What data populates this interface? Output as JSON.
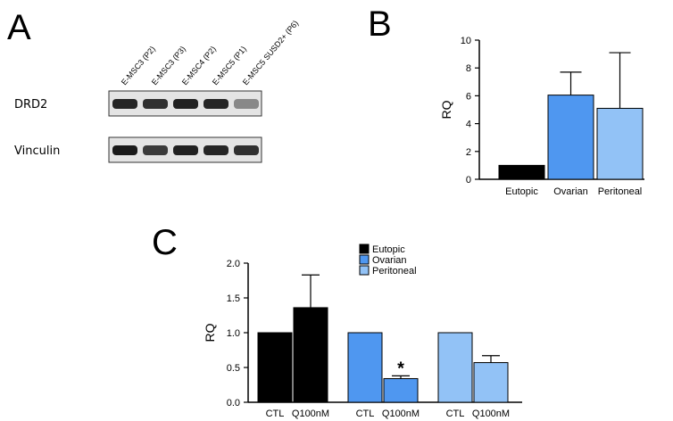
{
  "panels": {
    "a": {
      "letter": "A",
      "lanes": [
        "E-MSC3 (P2)",
        "E-MSC3 (P3)",
        "E-MSC4 (P2)",
        "E-MSC5 (P1)",
        "E-MSC5 SUSD2+ (P6)"
      ],
      "blots": [
        {
          "label": "DRD2",
          "intensities": [
            0.9,
            0.85,
            0.92,
            0.9,
            0.45
          ]
        },
        {
          "label": "Vinculin",
          "intensities": [
            0.95,
            0.8,
            0.92,
            0.9,
            0.85
          ]
        }
      ]
    },
    "b": {
      "letter": "B"
    },
    "c": {
      "letter": "C"
    }
  },
  "chart_data": [
    {
      "type": "bar",
      "panel": "B",
      "categories": [
        "Eutopic",
        "Ovarian",
        "Peritoneal"
      ],
      "values": [
        1.0,
        6.05,
        5.1
      ],
      "error": [
        0,
        1.65,
        4.0
      ],
      "colors": [
        "#000000",
        "#4f97f0",
        "#92c2f6"
      ],
      "ylabel": "RQ",
      "ylim": [
        0,
        10
      ],
      "yticks": [
        0,
        2,
        4,
        6,
        8,
        10
      ],
      "grid": false
    },
    {
      "type": "bar",
      "panel": "C",
      "groups": [
        "Eutopic",
        "Ovarian",
        "Peritoneal"
      ],
      "bar_labels": [
        "CTL",
        "Q100nM"
      ],
      "values": [
        [
          1.0,
          1.36
        ],
        [
          1.0,
          0.34
        ],
        [
          1.0,
          0.57
        ]
      ],
      "error": [
        [
          0,
          0.47
        ],
        [
          0,
          0.04
        ],
        [
          0,
          0.1
        ]
      ],
      "colors": [
        "#000000",
        "#4f97f0",
        "#92c2f6"
      ],
      "legend": [
        "Eutopic",
        "Ovarian",
        "Peritoneal"
      ],
      "legend_position": "top-right",
      "annotation": {
        "text": "*",
        "group": 1,
        "bar": 1
      },
      "ylabel": "RQ",
      "ylim": [
        0,
        2.0
      ],
      "yticks": [
        "0.0",
        "0.5",
        "1.0",
        "1.5",
        "2.0"
      ],
      "grid": false
    }
  ]
}
